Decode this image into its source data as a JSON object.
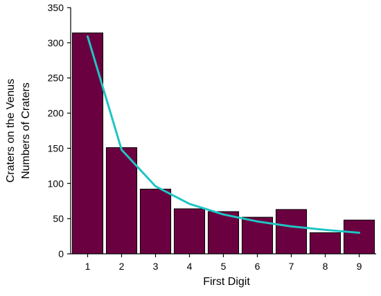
{
  "chart_data": {
    "type": "bar",
    "xlabel": "First Digit",
    "ylabel": [
      "Craters on the Venus",
      "Numbers of Craters"
    ],
    "categories": [
      "1",
      "2",
      "3",
      "4",
      "5",
      "6",
      "7",
      "8",
      "9"
    ],
    "series": [
      {
        "type": "bar",
        "color": "#6b0040",
        "values": [
          314,
          151,
          92,
          64,
          60,
          52,
          63,
          30,
          48
        ]
      },
      {
        "type": "line",
        "color": "#1fc4c4",
        "values": [
          309,
          148,
          96,
          71,
          56,
          46,
          39,
          34,
          30
        ]
      }
    ],
    "ylim": [
      0,
      350
    ],
    "yticks": [
      0,
      50,
      100,
      150,
      200,
      250,
      300,
      350
    ]
  }
}
